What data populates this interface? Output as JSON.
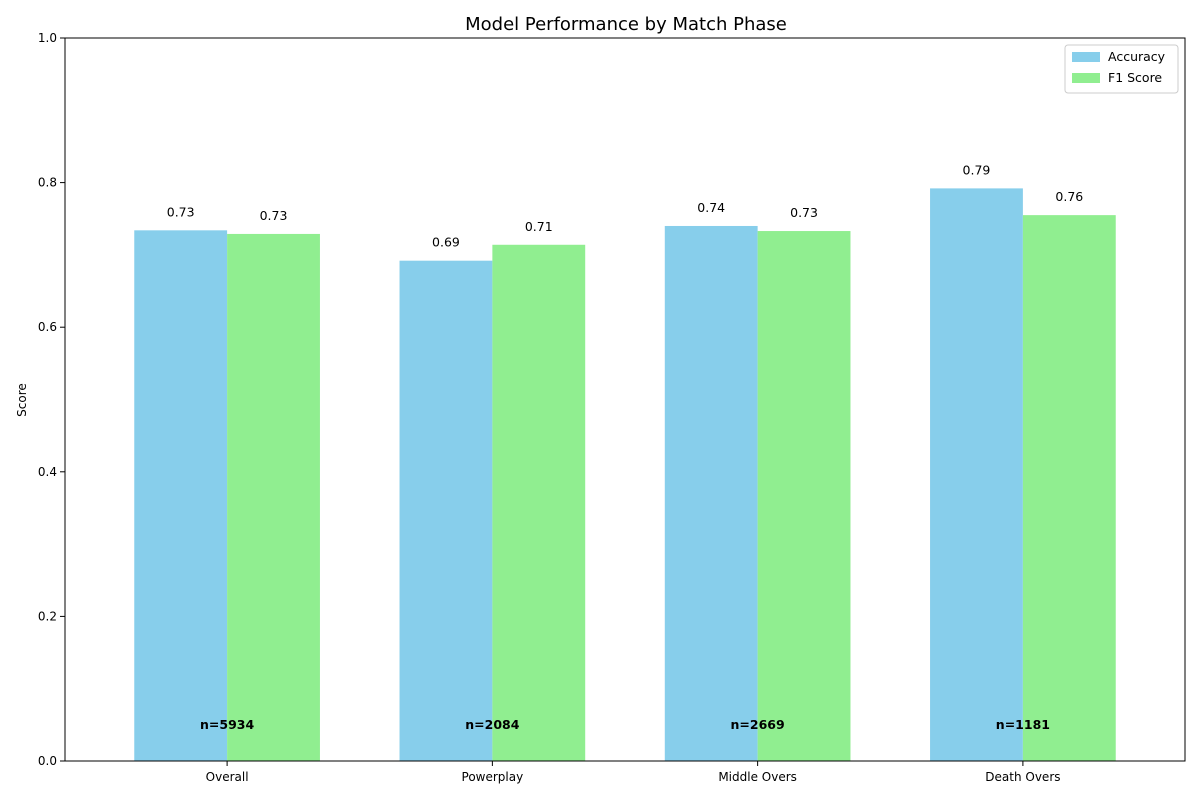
{
  "chart_data": {
    "type": "bar",
    "title": "Model Performance by Match Phase",
    "xlabel": "",
    "ylabel": "Score",
    "ylim": [
      0,
      1.0
    ],
    "yticks": [
      "0.0",
      "0.2",
      "0.4",
      "0.6",
      "0.8",
      "1.0"
    ],
    "categories": [
      "Overall",
      "Powerplay",
      "Middle Overs",
      "Death Overs"
    ],
    "series": [
      {
        "name": "Accuracy",
        "color": "#87CEEB",
        "values": [
          0.734,
          0.692,
          0.74,
          0.792
        ],
        "labels": [
          "0.73",
          "0.69",
          "0.74",
          "0.79"
        ]
      },
      {
        "name": "F1 Score",
        "color": "#90EE90",
        "values": [
          0.729,
          0.714,
          0.733,
          0.755
        ],
        "labels": [
          "0.73",
          "0.71",
          "0.73",
          "0.76"
        ]
      }
    ],
    "sample_sizes": [
      "n=5934",
      "n=2084",
      "n=2669",
      "n=1181"
    ],
    "legend_position": "top-right",
    "grid": false
  }
}
